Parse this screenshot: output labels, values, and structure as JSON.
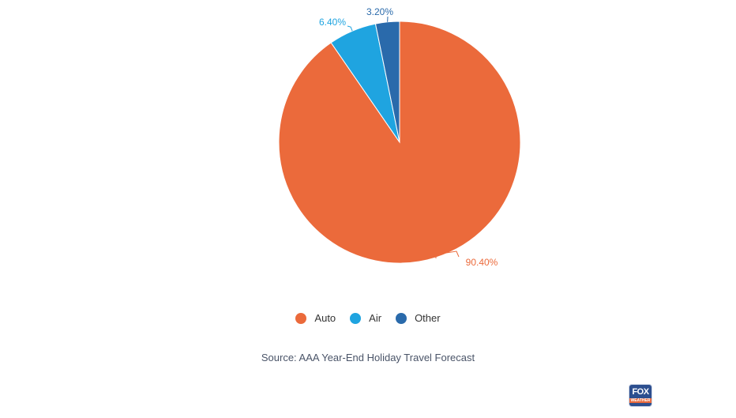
{
  "chart_data": {
    "type": "pie",
    "slices": [
      {
        "label": "Auto",
        "value": 90.4,
        "display": "90.40%",
        "color": "#eb6a3b"
      },
      {
        "label": "Air",
        "value": 6.4,
        "display": "6.40%",
        "color": "#1fa4e0"
      },
      {
        "label": "Other",
        "value": 3.2,
        "display": "3.20%",
        "color": "#2a6aab"
      }
    ],
    "legend": {
      "position": "bottom",
      "items": [
        "Auto",
        "Air",
        "Other"
      ]
    },
    "source": "Source: AAA Year-End Holiday Travel Forecast"
  },
  "branding": {
    "logo_top": "FOX",
    "logo_bottom": "WEATHER",
    "logo_color": "#2d4f8f"
  }
}
